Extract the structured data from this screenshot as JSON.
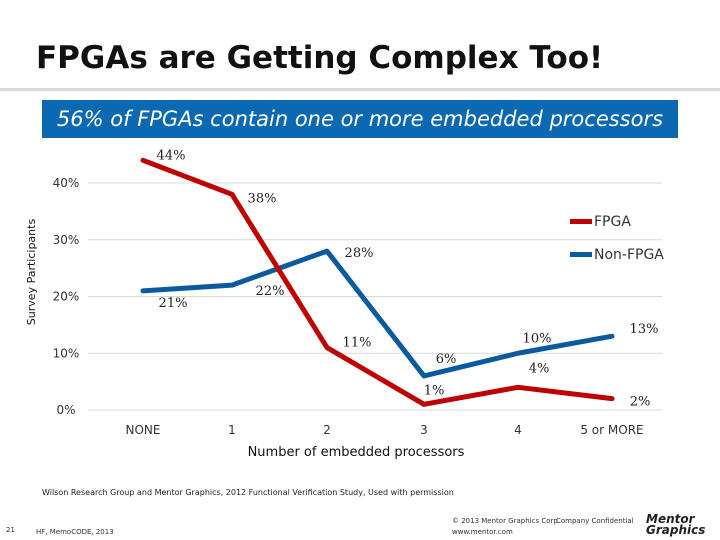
{
  "slide": {
    "title": "FPGAs are Getting Complex Too!",
    "banner": "56% of FPGAs contain one or more embedded processors",
    "source": "Wilson Research Group and Mentor Graphics, 2012 Functional Verification Study,   Used with permission",
    "footer": {
      "page_number": "21",
      "doc_id": "HF, MemoCODE, 2013",
      "copyright": "© 2013 Mentor Graphics Corp.",
      "confidential": "Company Confidential",
      "website": "www.mentor.com"
    },
    "logo": {
      "line1": "Mentor",
      "line2": "Graphics"
    }
  },
  "chart_data": {
    "type": "line",
    "title": "",
    "xlabel": "Number of embedded processors",
    "ylabel": "Survey Participants",
    "categories": [
      "NONE",
      "1",
      "2",
      "3",
      "4",
      "5 or MORE"
    ],
    "ylim": [
      0,
      40
    ],
    "yticks": [
      "0%",
      "10%",
      "20%",
      "30%",
      "40%"
    ],
    "grid": true,
    "legend_position": "right",
    "series": [
      {
        "name": "FPGA",
        "color": "#c00000",
        "values": [
          44,
          38,
          11,
          1,
          4,
          2
        ],
        "labels": [
          "44%",
          "38%",
          "11%",
          "1%",
          "4%",
          "2%"
        ]
      },
      {
        "name": "Non-FPGA",
        "color": "#0b5aa0",
        "values": [
          21,
          22,
          28,
          6,
          10,
          13
        ],
        "labels": [
          "21%",
          "22%",
          "28%",
          "6%",
          "10%",
          "13%"
        ]
      }
    ]
  }
}
